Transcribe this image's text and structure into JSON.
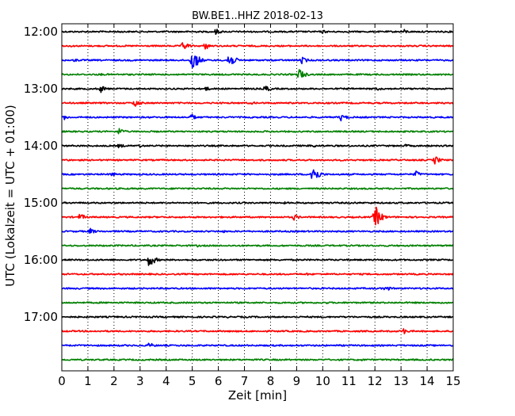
{
  "chart_data": {
    "type": "line",
    "title": "BW.BE1..HHZ 2018-02-13",
    "xlabel": "Zeit  [min]",
    "ylabel": "UTC (Lokalzeit = UTC + 01:00)",
    "xlim": [
      0,
      15
    ],
    "x_ticks": [
      0,
      1,
      2,
      3,
      4,
      5,
      6,
      7,
      8,
      9,
      10,
      11,
      12,
      13,
      14,
      15
    ],
    "y_tick_labels": [
      "12:00",
      "13:00",
      "14:00",
      "15:00",
      "16:00",
      "17:00"
    ],
    "grid": "vertical dotted",
    "colors": [
      "#000000",
      "#ff0000",
      "#0000ff",
      "#008000"
    ],
    "traces": [
      {
        "start": "12:00",
        "events": [
          [
            5.9,
            0.25
          ],
          [
            13.1,
            0.2
          ],
          [
            10.0,
            0.15
          ],
          [
            2.2,
            0.12
          ]
        ]
      },
      {
        "start": "12:15",
        "events": [
          [
            4.65,
            0.4
          ],
          [
            5.5,
            0.3
          ],
          [
            0.3,
            0.1
          ]
        ]
      },
      {
        "start": "12:30",
        "events": [
          [
            5.0,
            1.0
          ],
          [
            6.4,
            0.7
          ],
          [
            9.2,
            0.3
          ],
          [
            0.5,
            0.15
          ]
        ]
      },
      {
        "start": "12:45",
        "events": [
          [
            9.1,
            0.5
          ],
          [
            1.5,
            0.1
          ],
          [
            6.5,
            0.1
          ]
        ]
      },
      {
        "start": "13:00",
        "events": [
          [
            1.5,
            0.3
          ],
          [
            7.8,
            0.3
          ],
          [
            5.5,
            0.2
          ],
          [
            12.1,
            0.15
          ]
        ]
      },
      {
        "start": "13:15",
        "events": [
          [
            2.8,
            0.35
          ],
          [
            7.3,
            0.12
          ]
        ]
      },
      {
        "start": "13:30",
        "events": [
          [
            0.1,
            0.2
          ],
          [
            4.95,
            0.3
          ],
          [
            10.7,
            0.3
          ]
        ]
      },
      {
        "start": "13:45",
        "events": [
          [
            2.2,
            0.3
          ],
          [
            8.0,
            0.1
          ]
        ]
      },
      {
        "start": "14:00",
        "events": [
          [
            2.2,
            0.2
          ],
          [
            2.95,
            0.15
          ],
          [
            9.55,
            0.2
          ],
          [
            13.2,
            0.15
          ]
        ]
      },
      {
        "start": "14:15",
        "events": [
          [
            14.3,
            0.35
          ],
          [
            0.2,
            0.1
          ]
        ]
      },
      {
        "start": "14:30",
        "events": [
          [
            9.6,
            0.9
          ],
          [
            1.9,
            0.2
          ],
          [
            13.55,
            0.3
          ]
        ]
      },
      {
        "start": "14:45",
        "events": [
          [
            4.4,
            0.1
          ]
        ]
      },
      {
        "start": "15:00",
        "events": [
          [
            8.5,
            0.1
          ],
          [
            11.2,
            0.1
          ]
        ]
      },
      {
        "start": "15:15",
        "events": [
          [
            0.7,
            0.3
          ],
          [
            8.9,
            0.25
          ],
          [
            12.0,
            1.0
          ]
        ]
      },
      {
        "start": "15:30",
        "events": [
          [
            1.1,
            0.25
          ],
          [
            6.2,
            0.1
          ]
        ]
      },
      {
        "start": "15:45",
        "events": [
          [
            5.2,
            0.1
          ]
        ]
      },
      {
        "start": "16:00",
        "events": [
          [
            3.35,
            0.6
          ],
          [
            7.5,
            0.1
          ]
        ]
      },
      {
        "start": "16:15",
        "events": [
          [
            9.4,
            0.1
          ]
        ]
      },
      {
        "start": "16:30",
        "events": [
          [
            12.4,
            0.25
          ],
          [
            4.0,
            0.1
          ]
        ]
      },
      {
        "start": "16:45",
        "events": [
          [
            10.1,
            0.1
          ]
        ]
      },
      {
        "start": "17:00",
        "events": [
          [
            6.3,
            0.1
          ]
        ]
      },
      {
        "start": "17:15",
        "events": [
          [
            13.1,
            0.25
          ]
        ]
      },
      {
        "start": "17:30",
        "events": [
          [
            3.35,
            0.25
          ]
        ]
      },
      {
        "start": "17:45",
        "events": [
          [
            11.5,
            0.1
          ]
        ]
      }
    ]
  }
}
